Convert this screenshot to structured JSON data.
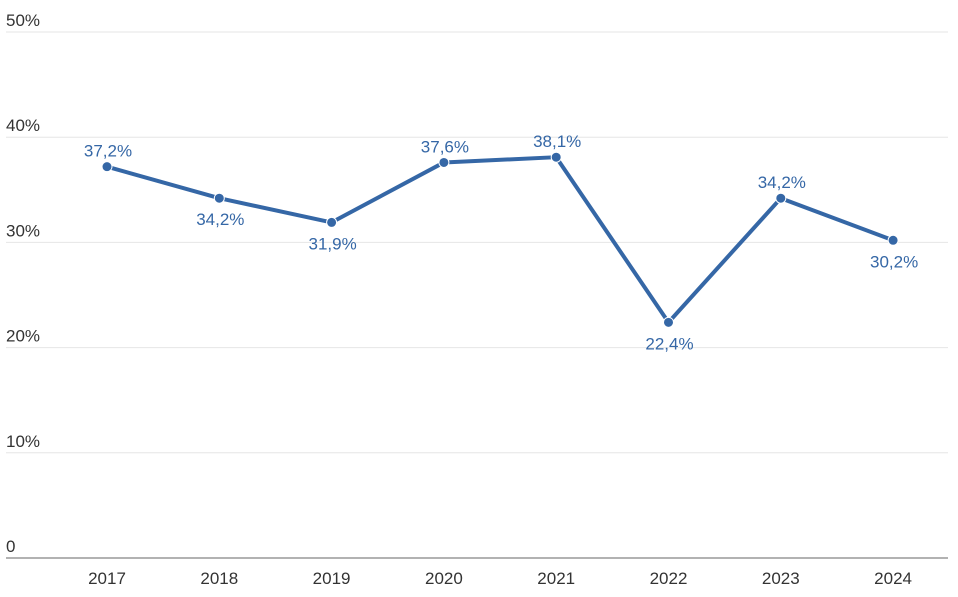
{
  "chart_data": {
    "type": "line",
    "title": "",
    "xlabel": "",
    "ylabel": "",
    "categories": [
      "2017",
      "2018",
      "2019",
      "2020",
      "2021",
      "2022",
      "2023",
      "2024"
    ],
    "series": [
      {
        "values": [
          37.2,
          34.2,
          31.9,
          37.6,
          38.1,
          22.4,
          34.2,
          30.2
        ],
        "data_labels": [
          "37,2%",
          "34,2%",
          "31,9%",
          "37,6%",
          "38,1%",
          "22,4%",
          "34,2%",
          "30,2%"
        ],
        "label_position": [
          "above",
          "below",
          "below",
          "above",
          "above",
          "below",
          "above",
          "below"
        ],
        "color": "#3567a6"
      }
    ],
    "ylim": [
      0,
      50
    ],
    "y_ticks": [
      0,
      10,
      20,
      30,
      40,
      50
    ],
    "y_tick_labels": [
      "0",
      "10%",
      "20%",
      "30%",
      "40%",
      "50%"
    ],
    "grid": true,
    "legend": "none",
    "colors": {
      "line": "#3567a6",
      "grid": "#e6e6e6",
      "axis": "#666666",
      "tick_text": "#333333"
    }
  }
}
